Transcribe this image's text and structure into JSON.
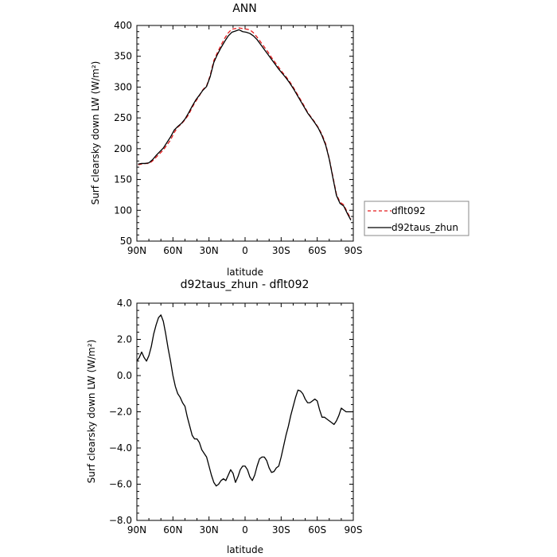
{
  "chart_data": [
    {
      "type": "line",
      "title": "ANN",
      "xlabel": "latitude",
      "ylabel": "Surf clearsky down LW (W/m²)",
      "xlim": [
        90,
        -90
      ],
      "ylim": [
        50,
        400
      ],
      "xticks": [
        90,
        60,
        30,
        0,
        -30,
        -60,
        -90
      ],
      "xtick_labels": [
        "90N",
        "60N",
        "30N",
        "0",
        "30S",
        "60S",
        "90S"
      ],
      "yticks": [
        50,
        100,
        150,
        200,
        250,
        300,
        350,
        400
      ],
      "ytick_labels": [
        "50",
        "100",
        "150",
        "200",
        "250",
        "300",
        "350",
        "400"
      ],
      "legend": {
        "placement": "right, outside"
      },
      "series": [
        {
          "name": "dflt092",
          "color": "#e41a1c",
          "dash": "dashed",
          "x": [
            89,
            86,
            83,
            80,
            77,
            74,
            71,
            68,
            65,
            62,
            59,
            56,
            53,
            50,
            47,
            44,
            41,
            38,
            35,
            32,
            29,
            26,
            23,
            20,
            17,
            14,
            11,
            8,
            5,
            2,
            -1,
            -4,
            -7,
            -10,
            -13,
            -16,
            -19,
            -22,
            -25,
            -28,
            -31,
            -34,
            -37,
            -40,
            -43,
            -46,
            -49,
            -52,
            -55,
            -58,
            -61,
            -64,
            -67,
            -70,
            -73,
            -76,
            -79,
            -82,
            -85,
            -88
          ],
          "y": [
            174,
            175,
            176,
            176,
            180,
            186,
            192,
            198,
            206,
            214,
            226,
            235,
            240,
            247,
            255,
            267,
            277,
            286,
            296,
            302,
            319,
            343,
            356,
            368,
            379,
            388,
            394,
            395,
            396,
            395,
            394,
            393,
            388,
            381,
            373,
            365,
            357,
            348,
            340,
            332,
            324,
            317,
            309,
            300,
            290,
            280,
            270,
            259,
            251,
            243,
            234,
            223,
            208,
            184,
            155,
            126,
            113,
            109,
            97,
            86
          ]
        },
        {
          "name": "d92taus_zhun",
          "color": "#000000",
          "dash": "solid",
          "x": [
            89,
            86,
            83,
            80,
            77,
            74,
            71,
            68,
            65,
            62,
            59,
            56,
            53,
            50,
            47,
            44,
            41,
            38,
            35,
            32,
            29,
            26,
            23,
            20,
            17,
            14,
            11,
            8,
            5,
            2,
            -1,
            -4,
            -7,
            -10,
            -13,
            -16,
            -19,
            -22,
            -25,
            -28,
            -31,
            -34,
            -37,
            -40,
            -43,
            -46,
            -49,
            -52,
            -55,
            -58,
            -61,
            -64,
            -67,
            -70,
            -73,
            -76,
            -79,
            -82,
            -85,
            -88
          ],
          "y": [
            175,
            176,
            176,
            177,
            182,
            189,
            195,
            201,
            210,
            219,
            230,
            236,
            241,
            248,
            258,
            269,
            279,
            287,
            295,
            301,
            317,
            340,
            353,
            364,
            374,
            383,
            389,
            391,
            393,
            390,
            389,
            387,
            383,
            377,
            369,
            361,
            353,
            345,
            337,
            329,
            322,
            315,
            307,
            298,
            288,
            278,
            268,
            258,
            250,
            242,
            233,
            221,
            206,
            183,
            153,
            124,
            111,
            107,
            95,
            84
          ]
        }
      ]
    },
    {
      "type": "line",
      "title": "d92taus_zhun - dflt092",
      "xlabel": "latitude",
      "ylabel": "Surf clearsky down LW (W/m²)",
      "xlim": [
        90,
        -90
      ],
      "ylim": [
        -8.0,
        4.0
      ],
      "xticks": [
        90,
        60,
        30,
        0,
        -30,
        -60,
        -90
      ],
      "xtick_labels": [
        "90N",
        "60N",
        "30N",
        "0",
        "30S",
        "60S",
        "90S"
      ],
      "yticks": [
        -8.0,
        -6.0,
        -4.0,
        -2.0,
        0.0,
        2.0,
        4.0
      ],
      "ytick_labels": [
        "−8.0",
        "−6.0",
        "−4.0",
        "−2.0",
        "0.0",
        "2.0",
        "4.0"
      ],
      "series": [
        {
          "name": "",
          "color": "#000000",
          "dash": "solid",
          "x": [
            90,
            88,
            86,
            84,
            82,
            80,
            78,
            76,
            74,
            72,
            70,
            68,
            66,
            64,
            62,
            60,
            58,
            56,
            54,
            52,
            50,
            48,
            46,
            44,
            42,
            40,
            38,
            36,
            34,
            32,
            30,
            28,
            26,
            24,
            22,
            20,
            18,
            16,
            14,
            12,
            10,
            8,
            6,
            4,
            2,
            0,
            -2,
            -4,
            -6,
            -8,
            -10,
            -12,
            -14,
            -16,
            -18,
            -20,
            -22,
            -24,
            -26,
            -28,
            -30,
            -32,
            -34,
            -36,
            -38,
            -40,
            -42,
            -44,
            -46,
            -48,
            -50,
            -52,
            -54,
            -56,
            -58,
            -60,
            -62,
            -64,
            -66,
            -68,
            -70,
            -72,
            -74,
            -76,
            -78,
            -80,
            -82,
            -84,
            -86,
            -88,
            -90
          ],
          "y": [
            0.8,
            1.0,
            1.3,
            1.0,
            0.8,
            1.1,
            1.6,
            2.3,
            2.8,
            3.2,
            3.35,
            3.0,
            2.3,
            1.5,
            0.8,
            0.0,
            -0.6,
            -1.0,
            -1.2,
            -1.5,
            -1.7,
            -2.3,
            -2.8,
            -3.3,
            -3.5,
            -3.5,
            -3.7,
            -4.1,
            -4.3,
            -4.5,
            -5.0,
            -5.5,
            -5.9,
            -6.1,
            -6.0,
            -5.8,
            -5.7,
            -5.8,
            -5.5,
            -5.2,
            -5.4,
            -5.9,
            -5.6,
            -5.2,
            -5.0,
            -5.0,
            -5.2,
            -5.6,
            -5.8,
            -5.5,
            -5.0,
            -4.6,
            -4.5,
            -4.5,
            -4.7,
            -5.1,
            -5.35,
            -5.3,
            -5.1,
            -5.0,
            -4.5,
            -3.9,
            -3.3,
            -2.8,
            -2.2,
            -1.7,
            -1.2,
            -0.8,
            -0.85,
            -1.0,
            -1.3,
            -1.5,
            -1.5,
            -1.4,
            -1.3,
            -1.4,
            -1.9,
            -2.3,
            -2.3,
            -2.4,
            -2.5,
            -2.6,
            -2.7,
            -2.5,
            -2.2,
            -1.8,
            -1.9,
            -2.0,
            -2.0,
            -2.0,
            -2.0
          ]
        }
      ]
    }
  ]
}
